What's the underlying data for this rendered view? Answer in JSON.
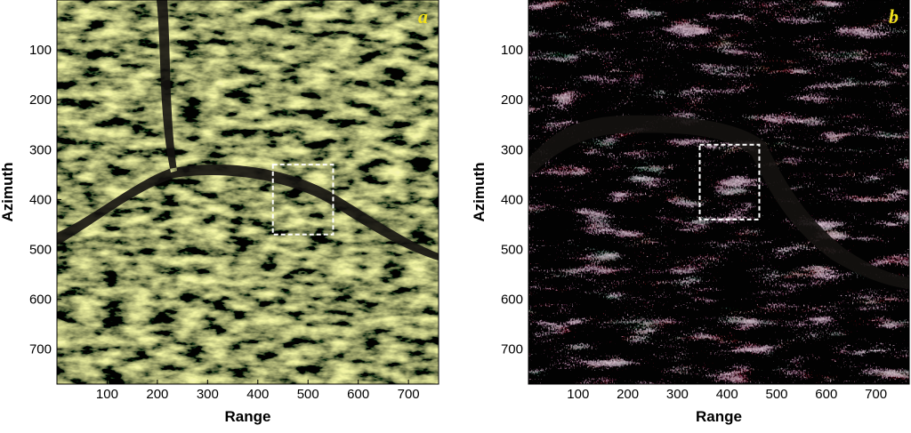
{
  "chart_data": [
    {
      "type": "image",
      "panel_label": "a",
      "x_label": "Range",
      "y_label": "Azimuth",
      "xlim": [
        0,
        760
      ],
      "ylim": [
        0,
        770
      ],
      "xticks": [
        100,
        200,
        300,
        400,
        500,
        600,
        700
      ],
      "yticks": [
        100,
        200,
        300,
        400,
        500,
        600,
        700
      ],
      "highlight": {
        "x": [
          430,
          550
        ],
        "y": [
          330,
          470
        ]
      },
      "color": "#b7b94e"
    },
    {
      "type": "image",
      "panel_label": "b",
      "x_label": "Range",
      "y_label": "Azimuth",
      "xlim": [
        0,
        767
      ],
      "ylim": [
        0,
        770
      ],
      "xticks": [
        100,
        200,
        300,
        400,
        500,
        600,
        700
      ],
      "yticks": [
        100,
        200,
        300,
        400,
        500,
        600,
        700
      ],
      "highlight": {
        "x": [
          345,
          465
        ],
        "y": [
          290,
          440
        ]
      },
      "color": "#9a8f96"
    }
  ]
}
